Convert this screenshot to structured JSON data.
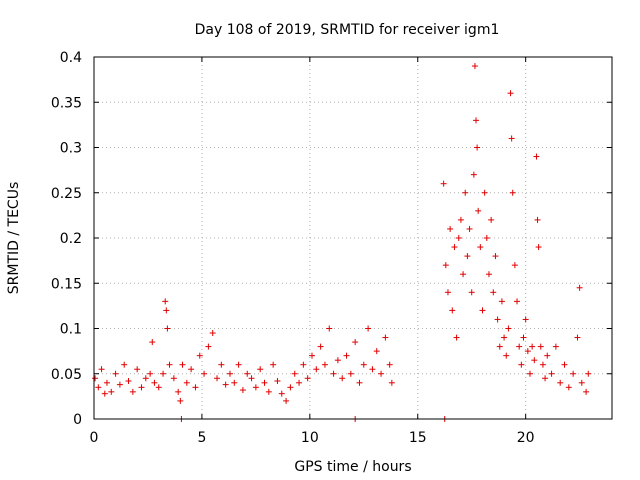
{
  "chart_data": {
    "type": "scatter",
    "title": "Day 108 of 2019, SRMTID for receiver igm1",
    "xlabel": "GPS time / hours",
    "ylabel": "SRMTID / TECUs",
    "xlim": [
      0,
      24
    ],
    "ylim": [
      0,
      0.4
    ],
    "xticks": [
      0,
      5,
      10,
      15,
      20
    ],
    "yticks": [
      0,
      0.05,
      0.1,
      0.15,
      0.2,
      0.25,
      0.3,
      0.35,
      0.4
    ],
    "xtick_labels": [
      "0",
      "5",
      "10",
      "15",
      "20"
    ],
    "ytick_labels": [
      "0",
      "0.05",
      "0.1",
      "0.15",
      "0.2",
      "0.25",
      "0.3",
      "0.35",
      "0.4"
    ],
    "grid": true,
    "marker": "+",
    "color": "#e00000",
    "series": [
      {
        "name": "SRMTID",
        "points": [
          [
            0.05,
            0.045
          ],
          [
            0.2,
            0.035
          ],
          [
            0.35,
            0.055
          ],
          [
            0.5,
            0.028
          ],
          [
            0.6,
            0.04
          ],
          [
            0.8,
            0.03
          ],
          [
            1.0,
            0.05
          ],
          [
            1.2,
            0.038
          ],
          [
            1.4,
            0.06
          ],
          [
            1.6,
            0.042
          ],
          [
            1.8,
            0.03
          ],
          [
            2.0,
            0.055
          ],
          [
            2.2,
            0.035
          ],
          [
            2.4,
            0.045
          ],
          [
            2.6,
            0.05
          ],
          [
            2.7,
            0.085
          ],
          [
            2.8,
            0.04
          ],
          [
            3.0,
            0.035
          ],
          [
            3.2,
            0.05
          ],
          [
            3.3,
            0.13
          ],
          [
            3.35,
            0.12
          ],
          [
            3.4,
            0.1
          ],
          [
            3.5,
            0.06
          ],
          [
            3.7,
            0.045
          ],
          [
            3.9,
            0.03
          ],
          [
            4.0,
            0.02
          ],
          [
            4.1,
            0.06
          ],
          [
            4.3,
            0.04
          ],
          [
            4.5,
            0.055
          ],
          [
            4.7,
            0.035
          ],
          [
            4.9,
            0.07
          ],
          [
            5.1,
            0.05
          ],
          [
            5.3,
            0.08
          ],
          [
            5.5,
            0.095
          ],
          [
            5.7,
            0.045
          ],
          [
            5.9,
            0.06
          ],
          [
            6.1,
            0.038
          ],
          [
            6.3,
            0.05
          ],
          [
            6.5,
            0.04
          ],
          [
            6.7,
            0.06
          ],
          [
            6.9,
            0.032
          ],
          [
            7.1,
            0.05
          ],
          [
            7.3,
            0.045
          ],
          [
            7.5,
            0.035
          ],
          [
            7.7,
            0.055
          ],
          [
            7.9,
            0.04
          ],
          [
            8.1,
            0.03
          ],
          [
            8.3,
            0.06
          ],
          [
            8.5,
            0.042
          ],
          [
            8.7,
            0.028
          ],
          [
            8.9,
            0.02
          ],
          [
            9.1,
            0.035
          ],
          [
            9.3,
            0.05
          ],
          [
            9.5,
            0.04
          ],
          [
            9.7,
            0.06
          ],
          [
            9.9,
            0.045
          ],
          [
            10.1,
            0.07
          ],
          [
            10.3,
            0.055
          ],
          [
            10.5,
            0.08
          ],
          [
            10.7,
            0.06
          ],
          [
            10.9,
            0.1
          ],
          [
            11.1,
            0.05
          ],
          [
            11.3,
            0.065
          ],
          [
            11.5,
            0.045
          ],
          [
            11.7,
            0.07
          ],
          [
            11.9,
            0.05
          ],
          [
            12.1,
            0.085
          ],
          [
            12.3,
            0.04
          ],
          [
            12.5,
            0.06
          ],
          [
            12.7,
            0.1
          ],
          [
            12.9,
            0.055
          ],
          [
            13.1,
            0.075
          ],
          [
            13.3,
            0.05
          ],
          [
            13.5,
            0.09
          ],
          [
            13.7,
            0.06
          ],
          [
            13.8,
            0.04
          ],
          [
            16.2,
            0.26
          ],
          [
            16.3,
            0.17
          ],
          [
            16.4,
            0.14
          ],
          [
            16.5,
            0.21
          ],
          [
            16.6,
            0.12
          ],
          [
            16.7,
            0.19
          ],
          [
            16.8,
            0.09
          ],
          [
            16.9,
            0.2
          ],
          [
            17.0,
            0.22
          ],
          [
            17.1,
            0.16
          ],
          [
            17.2,
            0.25
          ],
          [
            17.3,
            0.18
          ],
          [
            17.4,
            0.21
          ],
          [
            17.5,
            0.14
          ],
          [
            17.6,
            0.27
          ],
          [
            17.65,
            0.39
          ],
          [
            17.7,
            0.33
          ],
          [
            17.75,
            0.3
          ],
          [
            17.8,
            0.23
          ],
          [
            17.9,
            0.19
          ],
          [
            18.0,
            0.12
          ],
          [
            18.1,
            0.25
          ],
          [
            18.2,
            0.2
          ],
          [
            18.3,
            0.16
          ],
          [
            18.4,
            0.22
          ],
          [
            18.5,
            0.14
          ],
          [
            18.6,
            0.18
          ],
          [
            18.7,
            0.11
          ],
          [
            18.8,
            0.08
          ],
          [
            18.9,
            0.13
          ],
          [
            19.0,
            0.09
          ],
          [
            19.1,
            0.07
          ],
          [
            19.2,
            0.1
          ],
          [
            19.3,
            0.36
          ],
          [
            19.35,
            0.31
          ],
          [
            19.4,
            0.25
          ],
          [
            19.5,
            0.17
          ],
          [
            19.6,
            0.13
          ],
          [
            19.7,
            0.08
          ],
          [
            19.8,
            0.06
          ],
          [
            19.9,
            0.09
          ],
          [
            20.0,
            0.11
          ],
          [
            20.1,
            0.075
          ],
          [
            20.2,
            0.05
          ],
          [
            20.3,
            0.08
          ],
          [
            20.4,
            0.065
          ],
          [
            20.5,
            0.29
          ],
          [
            20.55,
            0.22
          ],
          [
            20.6,
            0.19
          ],
          [
            20.7,
            0.08
          ],
          [
            20.8,
            0.06
          ],
          [
            20.9,
            0.045
          ],
          [
            21.0,
            0.07
          ],
          [
            21.2,
            0.05
          ],
          [
            21.4,
            0.08
          ],
          [
            21.6,
            0.04
          ],
          [
            21.8,
            0.06
          ],
          [
            22.0,
            0.035
          ],
          [
            22.2,
            0.05
          ],
          [
            22.4,
            0.09
          ],
          [
            22.5,
            0.145
          ],
          [
            22.6,
            0.04
          ],
          [
            22.8,
            0.03
          ],
          [
            22.9,
            0.05
          ]
        ]
      }
    ],
    "outlier_points": [
      [
        4.05,
        0.0
      ],
      [
        12.1,
        0.0
      ],
      [
        16.25,
        0.0
      ]
    ]
  }
}
